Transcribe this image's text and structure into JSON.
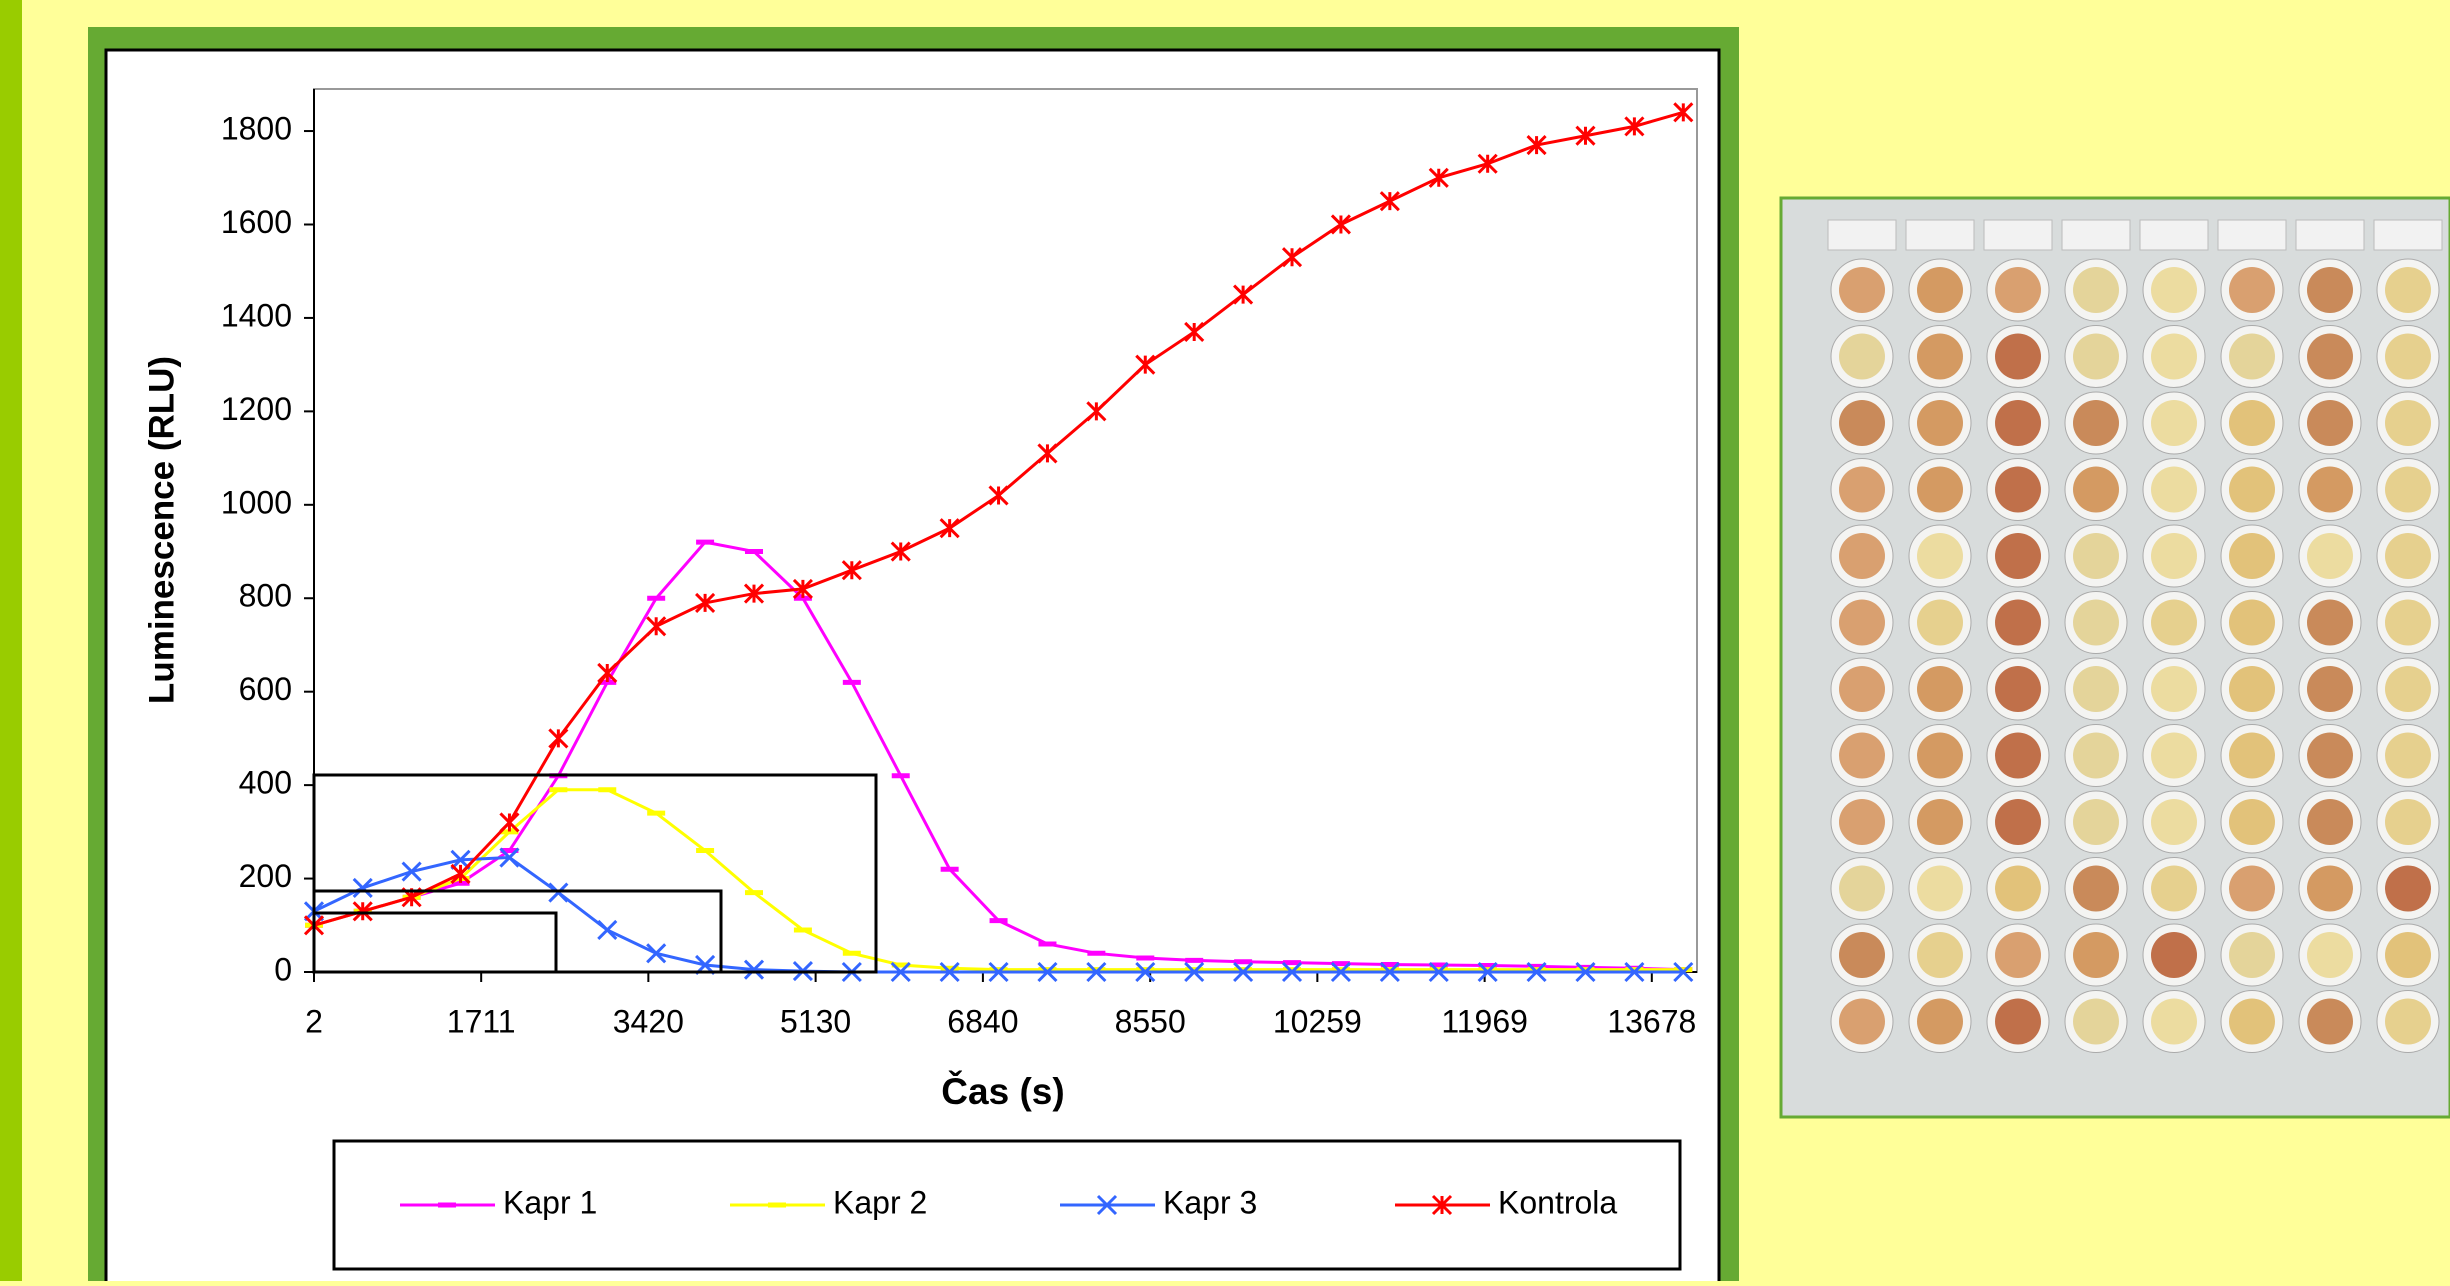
{
  "chart_data": {
    "type": "line",
    "y_label": "Luminescence (RLU)",
    "x_label": "Čas (s)",
    "x": [
      2,
      500,
      1000,
      1500,
      2000,
      2500,
      3000,
      3500,
      4000,
      4500,
      5000,
      5500,
      6000,
      6500,
      7000,
      7500,
      8000,
      8500,
      9000,
      9500,
      10000,
      10500,
      11000,
      11500,
      12000,
      12500,
      13000,
      13500,
      14000
    ],
    "series": [
      {
        "name": "Kapr 1",
        "color": "#ff00ff",
        "marker": "dash",
        "values": [
          100,
          130,
          160,
          190,
          260,
          420,
          620,
          800,
          920,
          900,
          800,
          620,
          420,
          220,
          110,
          60,
          40,
          30,
          25,
          22,
          20,
          18,
          16,
          15,
          14,
          12,
          10,
          8,
          5
        ]
      },
      {
        "name": "Kapr 2",
        "color": "#ffff00",
        "marker": "dash",
        "values": [
          100,
          130,
          160,
          200,
          300,
          390,
          390,
          340,
          260,
          170,
          90,
          40,
          15,
          8,
          5,
          5,
          5,
          5,
          5,
          5,
          5,
          5,
          5,
          5,
          5,
          5,
          5,
          5,
          5
        ]
      },
      {
        "name": "Kapr 3",
        "color": "#3366ff",
        "marker": "x",
        "values": [
          130,
          180,
          215,
          240,
          245,
          170,
          90,
          40,
          15,
          5,
          2,
          0,
          0,
          0,
          0,
          0,
          0,
          0,
          0,
          0,
          0,
          0,
          0,
          0,
          0,
          0,
          0,
          0,
          0
        ]
      },
      {
        "name": "Kontrola",
        "color": "#ff0000",
        "marker": "star",
        "values": [
          100,
          130,
          160,
          210,
          320,
          500,
          640,
          740,
          790,
          810,
          820,
          860,
          900,
          950,
          1020,
          1110,
          1200,
          1300,
          1370,
          1450,
          1530,
          1600,
          1650,
          1700,
          1730,
          1770,
          1790,
          1810,
          1840
        ]
      }
    ],
    "xlim": [
      2,
      14140
    ],
    "xticks": [
      2,
      1711,
      3420,
      5130,
      6840,
      8550,
      10259,
      11969,
      13678
    ],
    "ylim": [
      0,
      1890
    ],
    "yticks": [
      0,
      200,
      400,
      600,
      800,
      1000,
      1200,
      1400,
      1600,
      1800
    ],
    "legend": "bottom"
  }
}
